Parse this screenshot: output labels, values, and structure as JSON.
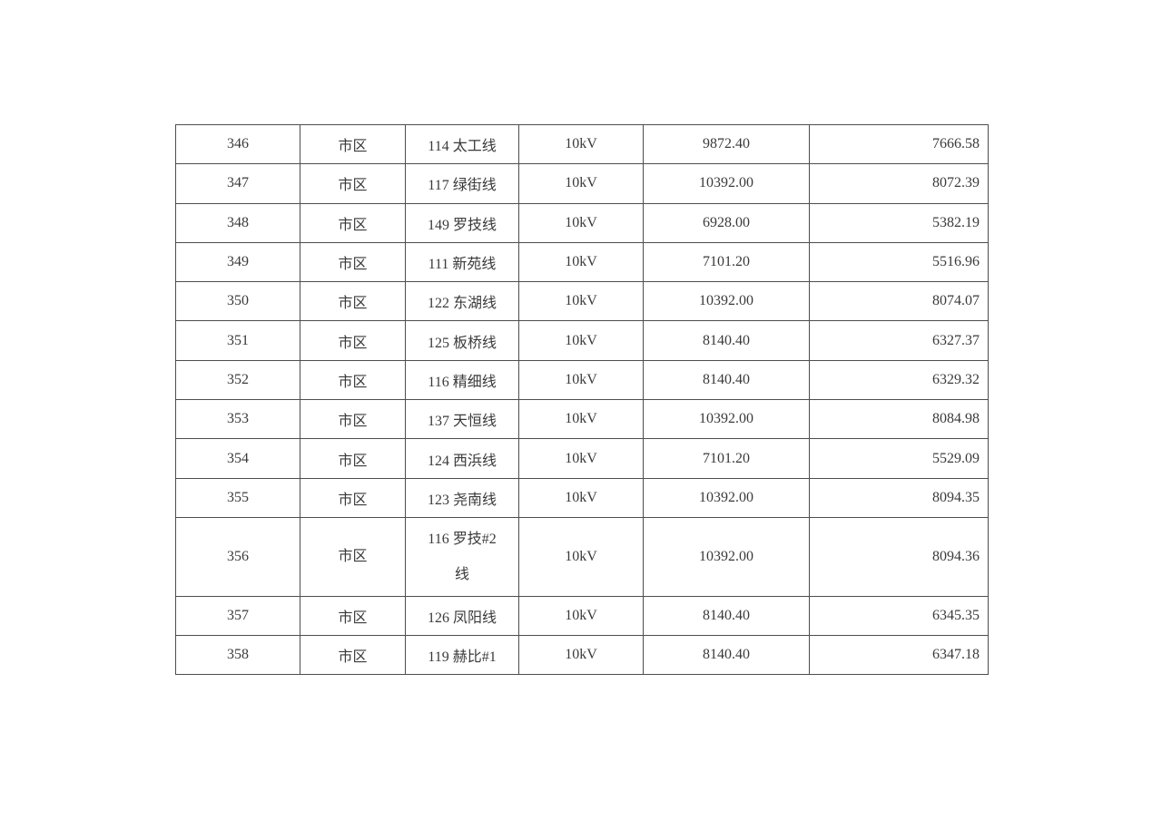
{
  "page": {
    "background_color": "#ffffff",
    "text_color": "#3a3a3a",
    "table_border_color": "#4d4d4d"
  },
  "table": {
    "rows": [
      [
        "346",
        "市区",
        "114 太工线",
        "10kV",
        "9872.40",
        "7666.58"
      ],
      [
        "347",
        "市区",
        "117 绿街线",
        "10kV",
        "10392.00",
        "8072.39"
      ],
      [
        "348",
        "市区",
        "149 罗技线",
        "10kV",
        "6928.00",
        "5382.19"
      ],
      [
        "349",
        "市区",
        "111 新苑线",
        "10kV",
        "7101.20",
        "5516.96"
      ],
      [
        "350",
        "市区",
        "122 东湖线",
        "10kV",
        "10392.00",
        "8074.07"
      ],
      [
        "351",
        "市区",
        "125 板桥线",
        "10kV",
        "8140.40",
        "6327.37"
      ],
      [
        "352",
        "市区",
        "116 精细线",
        "10kV",
        "8140.40",
        "6329.32"
      ],
      [
        "353",
        "市区",
        "137 天恒线",
        "10kV",
        "10392.00",
        "8084.98"
      ],
      [
        "354",
        "市区",
        "124 西浜线",
        "10kV",
        "7101.20",
        "5529.09"
      ],
      [
        "355",
        "市区",
        "123 尧南线",
        "10kV",
        "10392.00",
        "8094.35"
      ],
      [
        "356",
        "市区",
        "116 罗技#2\n线",
        "10kV",
        "10392.00",
        "8094.36"
      ],
      [
        "357",
        "市区",
        "126 凤阳线",
        "10kV",
        "8140.40",
        "6345.35"
      ],
      [
        "358",
        "市区",
        "119 赫比#1",
        "10kV",
        "8140.40",
        "6347.18"
      ]
    ]
  }
}
